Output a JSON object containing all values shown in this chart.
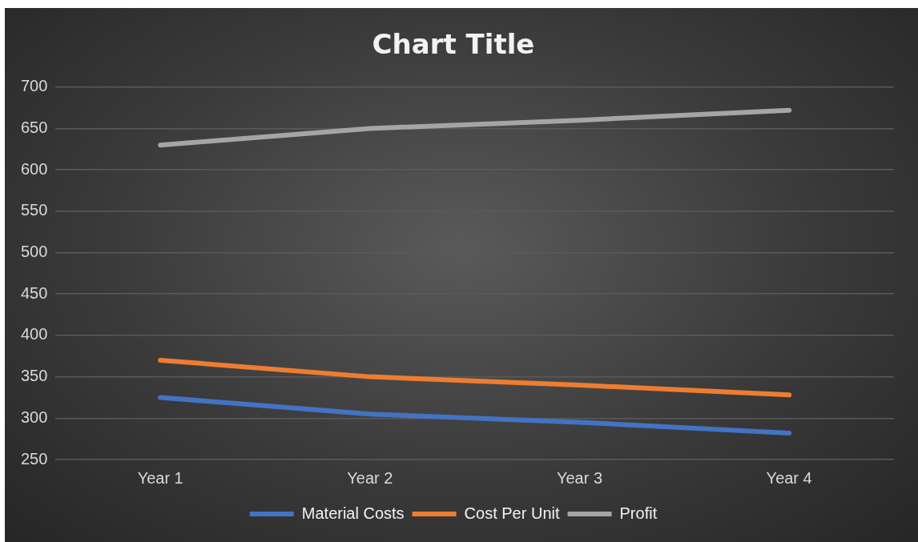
{
  "chart_data": {
    "type": "line",
    "title": "Chart Title",
    "categories": [
      "Year 1",
      "Year 2",
      "Year 3",
      "Year 4"
    ],
    "series": [
      {
        "name": "Material Costs",
        "color": "#4472c4",
        "values": [
          325,
          305,
          295,
          282
        ]
      },
      {
        "name": "Cost Per Unit",
        "color": "#ed7d31",
        "values": [
          370,
          350,
          340,
          328
        ]
      },
      {
        "name": "Profit",
        "color": "#a5a5a5",
        "values": [
          630,
          650,
          660,
          672
        ]
      }
    ],
    "ylim": [
      250,
      700
    ],
    "yticks": [
      250,
      300,
      350,
      400,
      450,
      500,
      550,
      600,
      650,
      700
    ],
    "grid": "y",
    "legend": "bottom",
    "marker": "none",
    "line_style": "solid"
  }
}
